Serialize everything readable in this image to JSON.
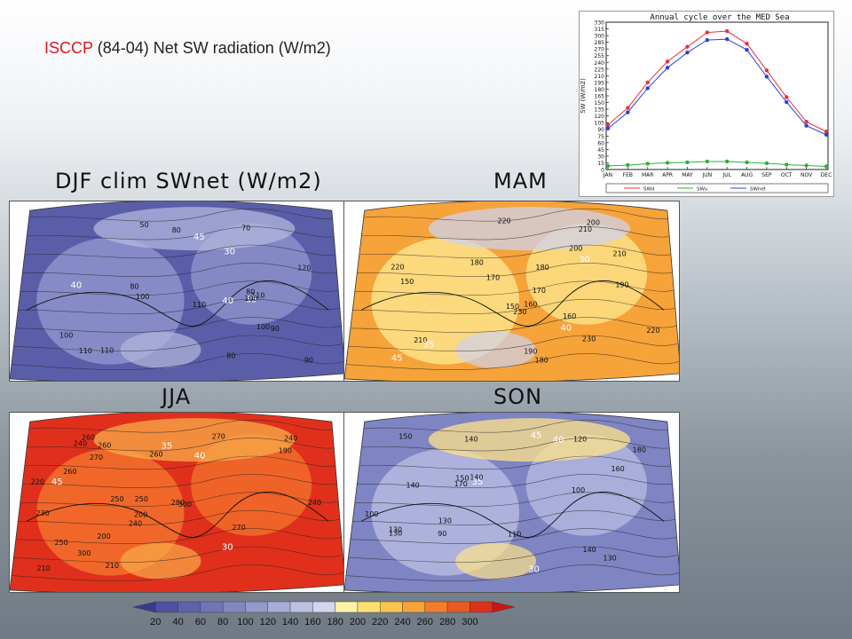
{
  "header": {
    "source": "ISCCP",
    "period": "(84-04)",
    "quantity": "Net SW radiation (W/m2)"
  },
  "panels": [
    {
      "label": "DJF clim SWnet (W/m2)",
      "colors": [
        "#5a5ea8",
        "#8e93cc",
        "#b3b7dd"
      ]
    },
    {
      "label": "MAM",
      "colors": [
        "#f6a33a",
        "#fde38a",
        "#cfd2ec"
      ]
    },
    {
      "label": "JJA",
      "colors": [
        "#e0301c",
        "#f2712c",
        "#f8ac4a"
      ]
    },
    {
      "label": "SON",
      "colors": [
        "#7f84c2",
        "#b5b9e0",
        "#fde38a"
      ]
    }
  ],
  "map_labels": {
    "djf": [
      "80",
      "70",
      "80",
      "100",
      "50",
      "45",
      "40",
      "40",
      "80",
      "80",
      "90",
      "100",
      "110",
      "110",
      "35",
      "100",
      "90",
      "110",
      "120",
      "100",
      "110",
      "30"
    ],
    "mam": [
      "150",
      "160",
      "170",
      "180",
      "210",
      "45",
      "150",
      "220",
      "40",
      "220",
      "210",
      "200",
      "180",
      "35",
      "230",
      "220",
      "190",
      "170",
      "180",
      "190",
      "230",
      "30",
      "160",
      "210",
      "200"
    ],
    "jja": [
      "230",
      "240",
      "200",
      "210",
      "260",
      "250",
      "260",
      "45",
      "250",
      "220",
      "240",
      "260",
      "270",
      "250",
      "40",
      "280",
      "270",
      "300",
      "240",
      "35",
      "300",
      "260",
      "200",
      "240",
      "30",
      "210",
      "190",
      "270"
    ],
    "son": [
      "100",
      "90",
      "45",
      "100",
      "120",
      "140",
      "130",
      "40",
      "110",
      "130",
      "140",
      "150",
      "130",
      "140",
      "180",
      "170",
      "35",
      "150",
      "160",
      "140",
      "30",
      "130"
    ]
  },
  "chart_data": [
    {
      "type": "line",
      "title": "Annual cycle over the MED Sea",
      "xlabel": "",
      "ylabel": "SW (W/m2)",
      "categories": [
        "JAN",
        "FEB",
        "MAR",
        "APR",
        "MAY",
        "JUN",
        "JUL",
        "AUG",
        "SEP",
        "OCT",
        "NOV",
        "DEC"
      ],
      "series": [
        {
          "name": "SWd",
          "color": "#e8313a",
          "values": [
            100,
            138,
            195,
            242,
            275,
            307,
            310,
            282,
            222,
            162,
            107,
            85
          ]
        },
        {
          "name": "SWu",
          "color": "#2bb13a",
          "values": [
            8,
            10,
            13,
            15,
            16,
            18,
            18,
            16,
            14,
            11,
            9,
            7
          ]
        },
        {
          "name": "SWnet",
          "color": "#2a41d6",
          "values": [
            92,
            128,
            182,
            228,
            262,
            290,
            292,
            268,
            208,
            151,
            98,
            78
          ]
        }
      ],
      "ylim": [
        0,
        330
      ],
      "yticks": [
        "0",
        "15",
        "30",
        "45",
        "60",
        "75",
        "90",
        "105",
        "120",
        "135",
        "150",
        "165",
        "180",
        "195",
        "210",
        "225",
        "240",
        "255",
        "270",
        "285",
        "300",
        "315",
        "330"
      ],
      "grid": false,
      "legend": "bottom"
    },
    {
      "type": "heatmap",
      "title": "",
      "colorbar_ticks": [
        "20",
        "40",
        "60",
        "80",
        "100",
        "120",
        "140",
        "160",
        "180",
        "200",
        "220",
        "240",
        "260",
        "280",
        "300"
      ],
      "colorbar_colors": [
        "#3a3a8c",
        "#4f52a0",
        "#5e62ac",
        "#7075b6",
        "#8287c0",
        "#9499cb",
        "#a8acd6",
        "#bdc0e2",
        "#d3d5ee",
        "#fdf2a6",
        "#fde070",
        "#fbc350",
        "#f8a33a",
        "#f27e2c",
        "#e75a22",
        "#dc3218",
        "#cf1414"
      ],
      "series": [
        {
          "name": "DJF clim SWnet (W/m2)",
          "range_approx": [
            30,
            130
          ]
        },
        {
          "name": "MAM",
          "range_approx": [
            150,
            240
          ]
        },
        {
          "name": "JJA",
          "range_approx": [
            190,
            310
          ]
        },
        {
          "name": "SON",
          "range_approx": [
            90,
            190
          ]
        }
      ],
      "lat_labels": [
        "45",
        "40",
        "35",
        "30"
      ]
    }
  ]
}
